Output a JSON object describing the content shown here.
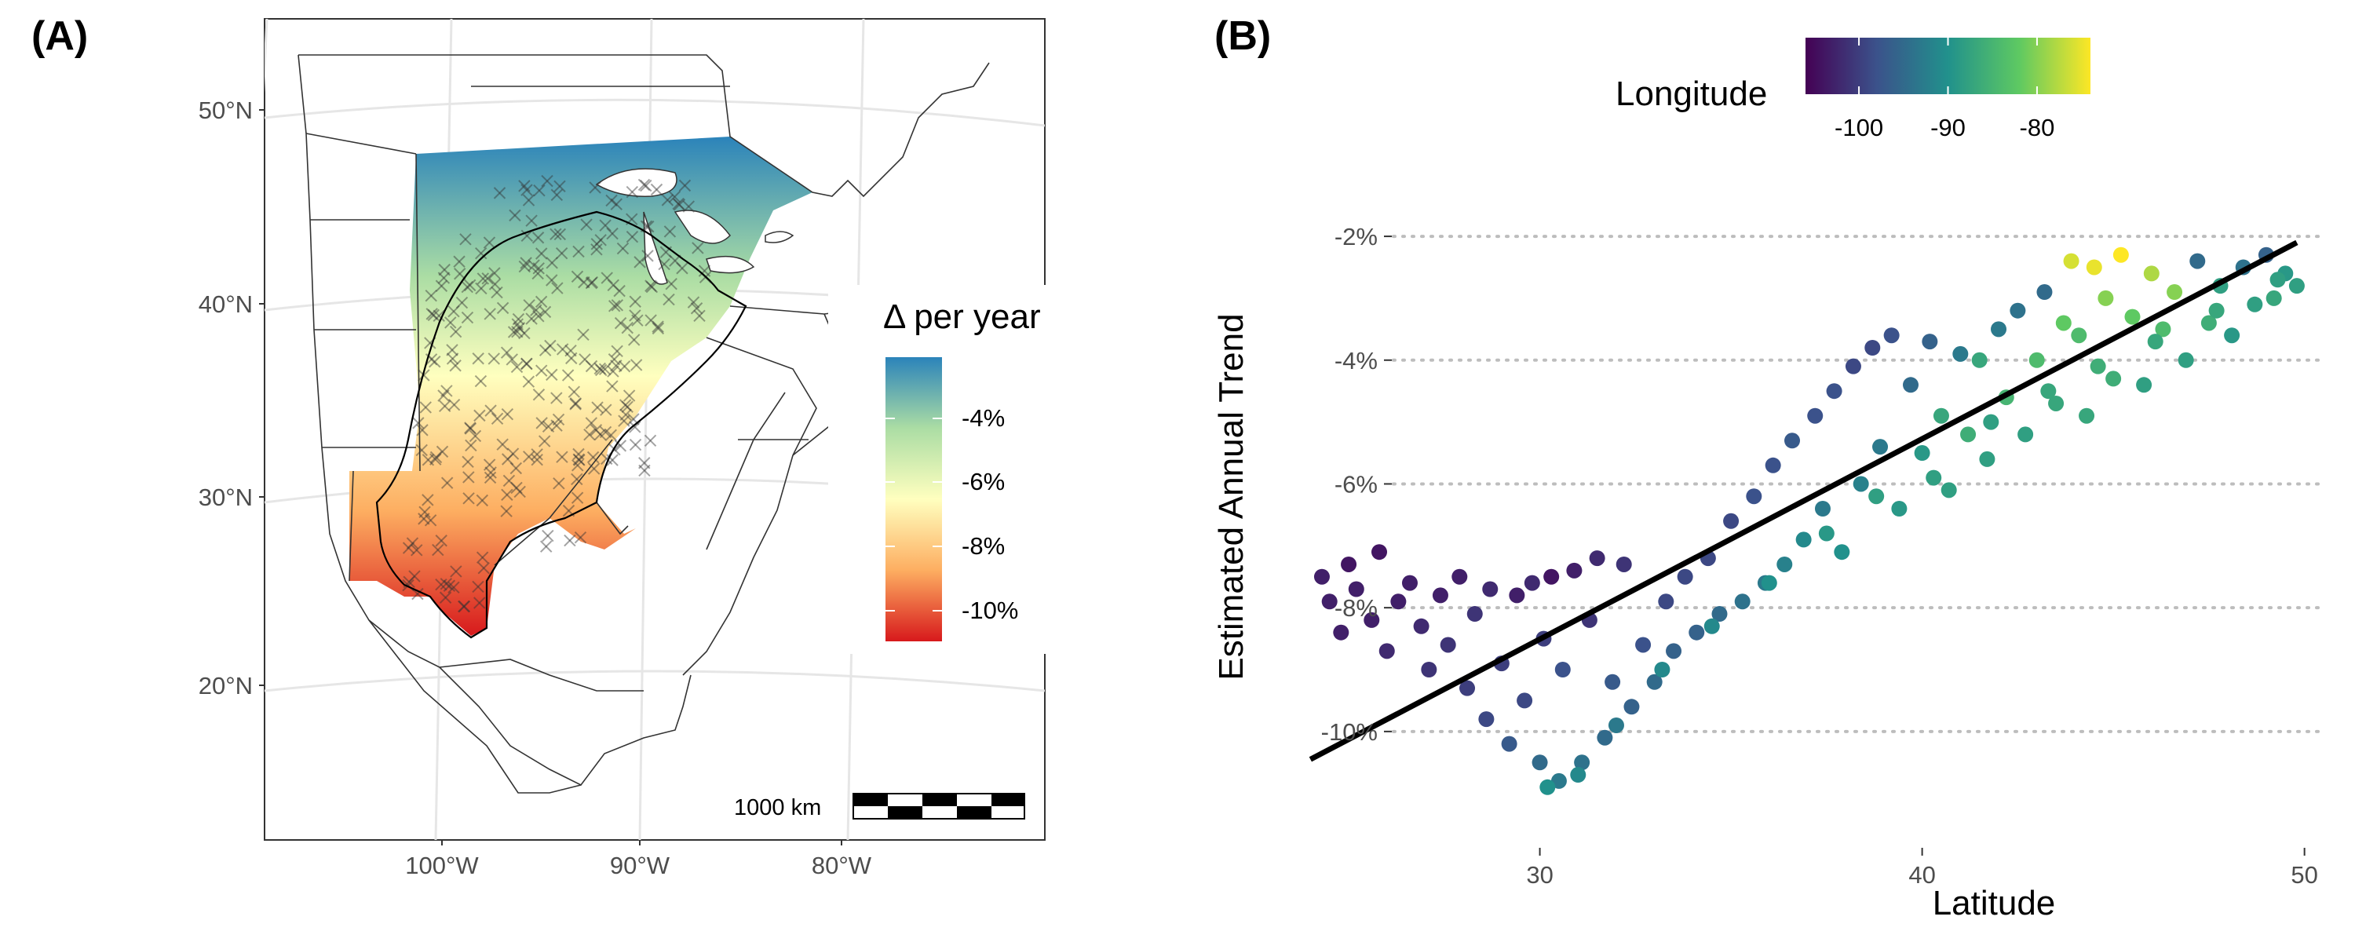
{
  "panels": {
    "a_label": "(A)",
    "b_label": "(B)"
  },
  "map_panel": {
    "lat_ticks": [
      "50°N",
      "40°N",
      "30°N",
      "20°N"
    ],
    "lon_ticks": [
      "100°W",
      "90°W",
      "80°W"
    ],
    "legend_title": "Δ per year",
    "legend_ticks": [
      "-4%",
      "-6%",
      "-8%",
      "-10%"
    ],
    "legend_colors": [
      "#2b83ba",
      "#abdda4",
      "#ffffbf",
      "#fdae61",
      "#d7191c"
    ],
    "scale_bar_label": "1000 km"
  },
  "chart_data": {
    "type": "scatter",
    "title": "",
    "xlabel": "Latitude",
    "ylabel": "Estimated Annual Trend",
    "xlim": [
      23.5,
      50.5
    ],
    "ylim": [
      -11.6,
      -1.2
    ],
    "x_ticks": [
      30,
      40,
      50
    ],
    "y_ticks": [
      -2,
      -4,
      -6,
      -8,
      -10
    ],
    "y_tick_labels": [
      "-2%",
      "-4%",
      "-6%",
      "-8%",
      "-10%"
    ],
    "x_tick_labels": [
      "30",
      "40",
      "50"
    ],
    "grid": "horizontal dotted at major y ticks",
    "color_variable": "Longitude",
    "colorbar": {
      "title": "Longitude",
      "range": [
        -106,
        -74
      ],
      "ticks": [
        -100,
        -90,
        -80
      ],
      "tick_labels": [
        "-100",
        "-90",
        "-80"
      ],
      "colors": [
        "#440154",
        "#3b528b",
        "#21918c",
        "#5ec962",
        "#fde725"
      ],
      "placement": "top"
    },
    "trend_line": {
      "x": [
        24,
        49.8
      ],
      "y": [
        -10.45,
        -2.1
      ]
    },
    "points": [
      [
        24.3,
        -7.5,
        -103
      ],
      [
        24.5,
        -7.9,
        -103
      ],
      [
        24.8,
        -8.4,
        -103
      ],
      [
        25.0,
        -7.3,
        -104
      ],
      [
        25.2,
        -7.7,
        -103
      ],
      [
        25.6,
        -8.2,
        -103
      ],
      [
        25.8,
        -7.1,
        -104
      ],
      [
        26.0,
        -8.7,
        -102
      ],
      [
        26.3,
        -7.9,
        -103
      ],
      [
        26.6,
        -7.6,
        -103
      ],
      [
        26.9,
        -8.3,
        -102
      ],
      [
        27.1,
        -9.0,
        -101
      ],
      [
        27.4,
        -7.8,
        -103
      ],
      [
        27.6,
        -8.6,
        -101
      ],
      [
        27.9,
        -7.5,
        -103
      ],
      [
        28.1,
        -9.3,
        -100
      ],
      [
        28.3,
        -8.1,
        -101
      ],
      [
        28.6,
        -9.8,
        -99
      ],
      [
        28.7,
        -7.7,
        -102
      ],
      [
        29.0,
        -8.9,
        -100
      ],
      [
        29.2,
        -10.2,
        -97
      ],
      [
        29.4,
        -7.8,
        -103
      ],
      [
        29.6,
        -9.5,
        -99
      ],
      [
        29.8,
        -7.6,
        -102
      ],
      [
        30.0,
        -10.5,
        -95
      ],
      [
        30.1,
        -8.5,
        -100
      ],
      [
        30.3,
        -7.5,
        -104
      ],
      [
        30.5,
        -10.8,
        -93
      ],
      [
        30.6,
        -9.0,
        -98
      ],
      [
        30.9,
        -7.4,
        -103
      ],
      [
        31.1,
        -10.5,
        -94
      ],
      [
        31.3,
        -8.2,
        -101
      ],
      [
        31.5,
        -7.2,
        -102
      ],
      [
        31.7,
        -10.1,
        -95
      ],
      [
        31.9,
        -9.2,
        -97
      ],
      [
        32.2,
        -7.3,
        -101
      ],
      [
        32.4,
        -9.6,
        -96
      ],
      [
        32.7,
        -8.6,
        -98
      ],
      [
        33.0,
        -9.2,
        -95
      ],
      [
        33.3,
        -7.9,
        -99
      ],
      [
        33.5,
        -8.7,
        -96
      ],
      [
        33.8,
        -7.5,
        -99
      ],
      [
        34.1,
        -8.4,
        -96
      ],
      [
        34.4,
        -7.2,
        -99
      ],
      [
        34.7,
        -8.1,
        -95
      ],
      [
        35.0,
        -6.6,
        -99
      ],
      [
        35.3,
        -7.9,
        -94
      ],
      [
        35.6,
        -6.2,
        -98
      ],
      [
        35.9,
        -7.6,
        -93
      ],
      [
        36.1,
        -5.7,
        -98
      ],
      [
        36.4,
        -7.3,
        -92
      ],
      [
        36.6,
        -5.3,
        -97
      ],
      [
        36.9,
        -6.9,
        -91
      ],
      [
        37.2,
        -4.9,
        -98
      ],
      [
        37.4,
        -6.4,
        -93
      ],
      [
        37.7,
        -4.5,
        -98
      ],
      [
        37.9,
        -7.1,
        -90
      ],
      [
        38.2,
        -4.1,
        -99
      ],
      [
        38.4,
        -6.0,
        -92
      ],
      [
        38.7,
        -3.8,
        -99
      ],
      [
        38.9,
        -5.4,
        -93
      ],
      [
        39.2,
        -3.6,
        -98
      ],
      [
        39.4,
        -6.4,
        -89
      ],
      [
        39.7,
        -4.4,
        -95
      ],
      [
        40.0,
        -5.5,
        -89
      ],
      [
        40.2,
        -3.7,
        -96
      ],
      [
        40.5,
        -4.9,
        -87
      ],
      [
        40.7,
        -6.1,
        -88
      ],
      [
        41.0,
        -3.9,
        -93
      ],
      [
        41.2,
        -5.2,
        -86
      ],
      [
        41.5,
        -4.0,
        -87
      ],
      [
        41.7,
        -5.6,
        -88
      ],
      [
        42.0,
        -3.5,
        -93
      ],
      [
        42.2,
        -4.6,
        -85
      ],
      [
        42.5,
        -3.2,
        -94
      ],
      [
        42.7,
        -5.2,
        -88
      ],
      [
        43.0,
        -4.0,
        -84
      ],
      [
        43.2,
        -2.9,
        -95
      ],
      [
        43.5,
        -4.7,
        -87
      ],
      [
        43.7,
        -3.4,
        -82
      ],
      [
        43.9,
        -2.4,
        -76
      ],
      [
        44.1,
        -3.6,
        -84
      ],
      [
        44.3,
        -4.9,
        -87
      ],
      [
        44.5,
        -2.5,
        -75
      ],
      [
        44.8,
        -3.0,
        -80
      ],
      [
        45.0,
        -4.3,
        -86
      ],
      [
        45.2,
        -2.3,
        -74
      ],
      [
        45.5,
        -3.3,
        -82
      ],
      [
        45.8,
        -4.4,
        -88
      ],
      [
        46.0,
        -2.6,
        -78
      ],
      [
        46.3,
        -3.5,
        -84
      ],
      [
        46.6,
        -2.9,
        -80
      ],
      [
        46.9,
        -4.0,
        -88
      ],
      [
        47.2,
        -2.4,
        -95
      ],
      [
        47.5,
        -3.4,
        -86
      ],
      [
        47.8,
        -2.8,
        -88
      ],
      [
        48.1,
        -3.6,
        -89
      ],
      [
        48.4,
        -2.5,
        -94
      ],
      [
        48.7,
        -3.1,
        -88
      ],
      [
        49.0,
        -2.3,
        -96
      ],
      [
        49.2,
        -3.0,
        -87
      ],
      [
        49.5,
        -2.6,
        -89
      ],
      [
        49.8,
        -2.8,
        -88
      ],
      [
        30.2,
        -10.9,
        -90
      ],
      [
        31.0,
        -10.7,
        -91
      ],
      [
        32.0,
        -9.9,
        -93
      ],
      [
        33.2,
        -9.0,
        -91
      ],
      [
        34.5,
        -8.3,
        -91
      ],
      [
        36.0,
        -7.6,
        -90
      ],
      [
        37.5,
        -6.8,
        -89
      ],
      [
        38.8,
        -6.2,
        -88
      ],
      [
        40.3,
        -5.9,
        -88
      ],
      [
        41.8,
        -5.0,
        -88
      ],
      [
        43.3,
        -4.5,
        -87
      ],
      [
        44.6,
        -4.1,
        -86
      ],
      [
        46.1,
        -3.7,
        -87
      ],
      [
        47.7,
        -3.2,
        -87
      ],
      [
        49.3,
        -2.7,
        -88
      ]
    ]
  }
}
